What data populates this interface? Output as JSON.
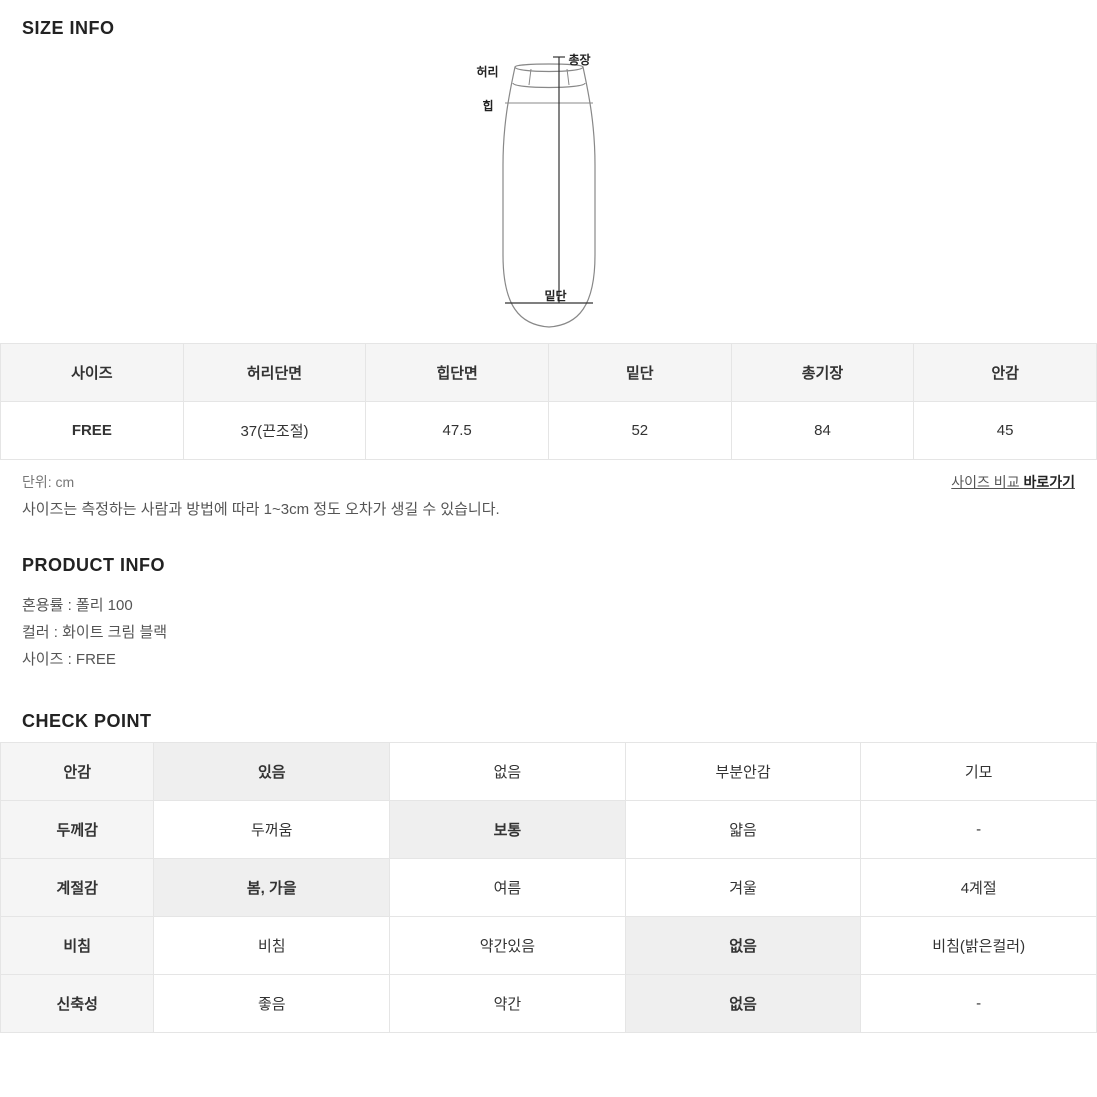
{
  "colors": {
    "page_bg": "#ffffff",
    "text_primary": "#222222",
    "text_secondary": "#555555",
    "text_muted": "#777777",
    "table_border": "#e5e5e5",
    "table_header_bg": "#f5f5f5",
    "selected_bg": "#efefef",
    "diagram_stroke": "#888888"
  },
  "size_info": {
    "title": "SIZE INFO",
    "diagram_labels": {
      "chongjang": "총장",
      "heori": "허리",
      "hip": "힙",
      "mitdan": "밑단"
    },
    "table": {
      "headers": [
        "사이즈",
        "허리단면",
        "힙단면",
        "밑단",
        "총기장",
        "안감"
      ],
      "rows": [
        {
          "label": "FREE",
          "cells": [
            "37(끈조절)",
            "47.5",
            "52",
            "84",
            "45"
          ]
        }
      ]
    },
    "unit_note": "단위: cm",
    "compare_link_prefix": "사이즈 비교 ",
    "compare_link_bold": "바로가기",
    "disclaimer": "사이즈는 측정하는 사람과 방법에 따라 1~3cm 정도 오차가 생길 수 있습니다."
  },
  "product_info": {
    "title": "PRODUCT INFO",
    "lines": [
      "혼용률 : 폴리 100",
      "컬러 : 화이트 크림 블랙",
      "사이즈 : FREE"
    ]
  },
  "check_point": {
    "title": "CHECK POINT",
    "rows": [
      {
        "label": "안감",
        "options": [
          "있음",
          "없음",
          "부분안감",
          "기모"
        ],
        "selected": 0
      },
      {
        "label": "두께감",
        "options": [
          "두꺼움",
          "보통",
          "얇음",
          "-"
        ],
        "selected": 1
      },
      {
        "label": "계절감",
        "options": [
          "봄, 가을",
          "여름",
          "겨울",
          "4계절"
        ],
        "selected": 0
      },
      {
        "label": "비침",
        "options": [
          "비침",
          "약간있음",
          "없음",
          "비침(밝은컬러)"
        ],
        "selected": 2
      },
      {
        "label": "신축성",
        "options": [
          "좋음",
          "약간",
          "없음",
          "-"
        ],
        "selected": 2
      }
    ]
  }
}
